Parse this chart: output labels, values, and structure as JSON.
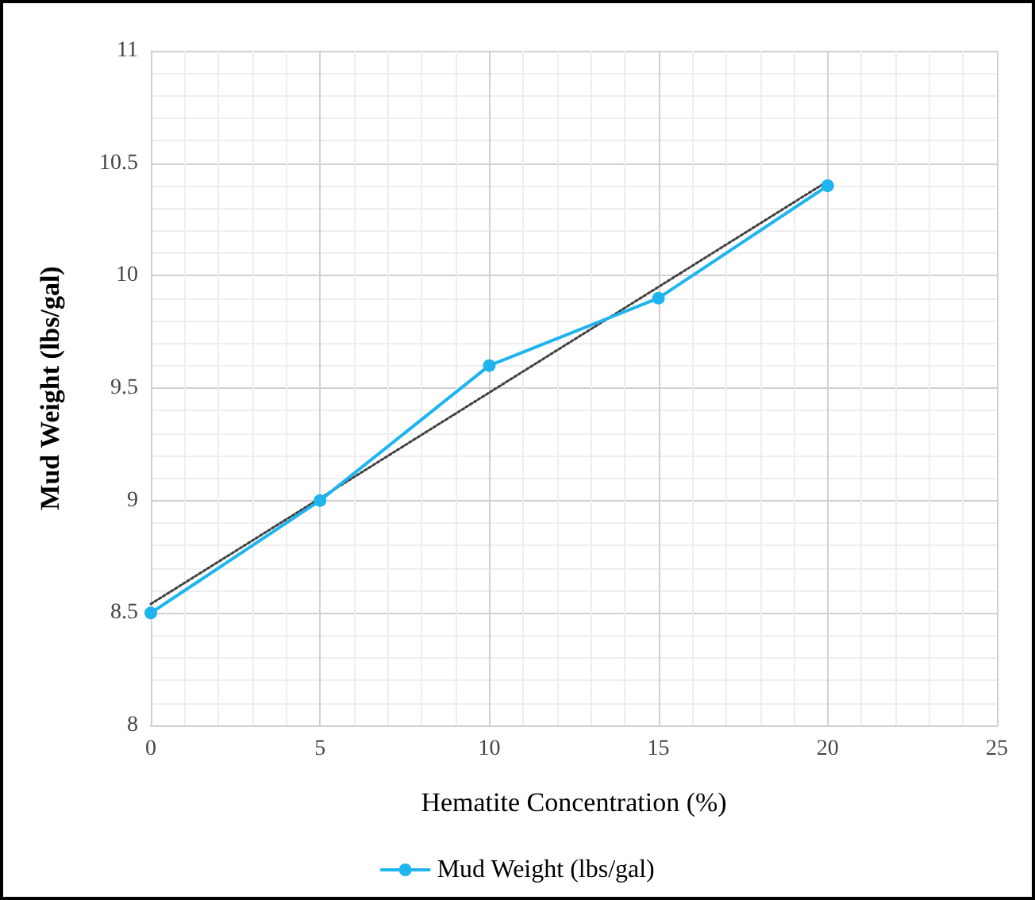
{
  "chart_data": {
    "type": "line",
    "xlabel": "Hematite Concentration (%)",
    "ylabel": "Mud Weight (lbs/gal)",
    "x": [
      0,
      5,
      10,
      15,
      20
    ],
    "series": [
      {
        "name": "Mud Weight (lbs/gal)",
        "color": "#1eb4ef",
        "values": [
          8.5,
          9.0,
          9.6,
          9.9,
          10.4
        ],
        "marker": "circle",
        "line_style": "solid"
      },
      {
        "type": "line",
        "x": [
          0,
          20
        ],
        "color": "#404040",
        "values": [
          8.54,
          10.42
        ],
        "marker": "none",
        "line_style": "dotted"
      }
    ],
    "xlim": [
      0,
      25
    ],
    "xticks": [
      0,
      5,
      10,
      15,
      20,
      25
    ],
    "ylim": [
      8,
      11
    ],
    "yticks": [
      8,
      8.5,
      9,
      9.5,
      10,
      10.5,
      11
    ],
    "grid": true,
    "legend": "bottom"
  }
}
